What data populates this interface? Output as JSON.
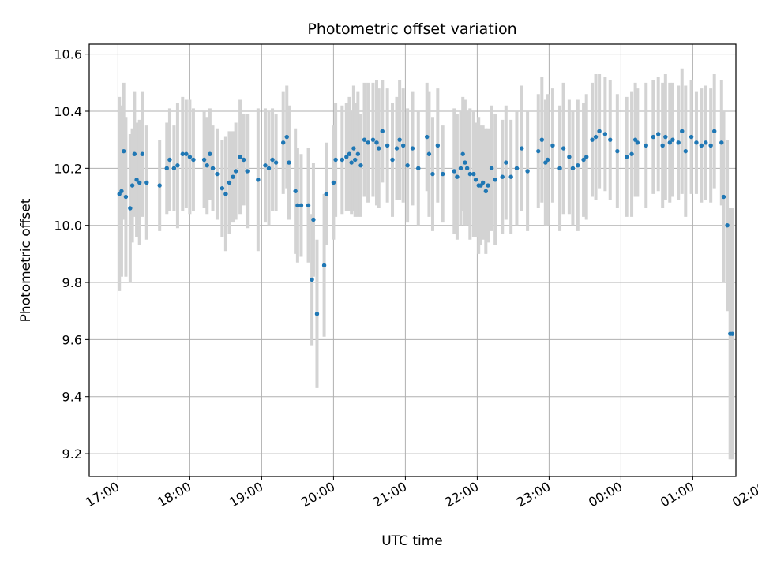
{
  "chart_data": {
    "type": "scatter",
    "title": "Photometric offset variation",
    "xlabel": "UTC time",
    "ylabel": "Photometric offset",
    "grid": true,
    "xlim": [
      16.6,
      25.6
    ],
    "ylim": [
      9.12,
      10.635
    ],
    "x_ticks": [
      {
        "value": 17,
        "label": "17:00"
      },
      {
        "value": 18,
        "label": "18:00"
      },
      {
        "value": 19,
        "label": "19:00"
      },
      {
        "value": 20,
        "label": "20:00"
      },
      {
        "value": 21,
        "label": "21:00"
      },
      {
        "value": 22,
        "label": "22:00"
      },
      {
        "value": 23,
        "label": "23:00"
      },
      {
        "value": 24,
        "label": "00:00"
      },
      {
        "value": 25,
        "label": "01:00"
      },
      {
        "value": 26,
        "label": "02:00"
      }
    ],
    "y_ticks": [
      {
        "value": 9.2,
        "label": "9.2"
      },
      {
        "value": 9.4,
        "label": "9.4"
      },
      {
        "value": 9.6,
        "label": "9.6"
      },
      {
        "value": 9.8,
        "label": "9.8"
      },
      {
        "value": 10.0,
        "label": "10.0"
      },
      {
        "value": 10.2,
        "label": "10.2"
      },
      {
        "value": 10.4,
        "label": "10.4"
      },
      {
        "value": 10.6,
        "label": "10.6"
      }
    ],
    "colors": {
      "marker": "#1f77b4",
      "errorbar": "#d3d3d3",
      "grid": "#b0b0b0"
    },
    "series": [
      {
        "x": [
          17.02,
          17.05,
          17.08,
          17.11,
          17.17,
          17.2,
          17.23,
          17.26,
          17.3,
          17.34,
          17.4,
          17.58,
          17.68,
          17.72,
          17.78,
          17.83,
          17.9,
          17.95,
          18.0,
          18.05,
          18.2,
          18.24,
          18.28,
          18.32,
          18.38,
          18.45,
          18.5,
          18.55,
          18.6,
          18.64,
          18.7,
          18.75,
          18.8,
          18.95,
          19.05,
          19.1,
          19.15,
          19.2,
          19.3,
          19.35,
          19.38,
          19.47,
          19.5,
          19.55,
          19.65,
          19.7,
          19.72,
          19.77,
          19.87,
          19.9,
          20.0,
          20.03,
          20.12,
          20.18,
          20.22,
          20.25,
          20.28,
          20.3,
          20.34,
          20.38,
          20.43,
          20.48,
          20.55,
          20.6,
          20.63,
          20.68,
          20.75,
          20.82,
          20.88,
          20.92,
          20.97,
          21.03,
          21.1,
          21.18,
          21.3,
          21.33,
          21.38,
          21.45,
          21.52,
          21.68,
          21.72,
          21.77,
          21.8,
          21.83,
          21.86,
          21.9,
          21.95,
          21.98,
          22.02,
          22.05,
          22.08,
          22.12,
          22.15,
          22.2,
          22.25,
          22.35,
          22.4,
          22.47,
          22.55,
          22.62,
          22.7,
          22.85,
          22.9,
          22.95,
          22.98,
          23.05,
          23.15,
          23.2,
          23.28,
          23.33,
          23.4,
          23.48,
          23.52,
          23.6,
          23.65,
          23.7,
          23.78,
          23.85,
          23.95,
          24.08,
          24.15,
          24.2,
          24.23,
          24.35,
          24.45,
          24.52,
          24.58,
          24.62,
          24.68,
          24.72,
          24.8,
          24.85,
          24.9,
          24.98,
          25.05,
          25.12,
          25.18,
          25.25,
          25.3,
          25.4,
          25.43,
          25.48,
          25.52,
          25.55
        ],
        "y": [
          10.11,
          10.12,
          10.26,
          10.1,
          10.06,
          10.14,
          10.25,
          10.16,
          10.15,
          10.25,
          10.15,
          10.14,
          10.2,
          10.23,
          10.2,
          10.21,
          10.25,
          10.25,
          10.24,
          10.23,
          10.23,
          10.21,
          10.25,
          10.2,
          10.18,
          10.13,
          10.11,
          10.15,
          10.17,
          10.19,
          10.24,
          10.23,
          10.19,
          10.16,
          10.21,
          10.2,
          10.23,
          10.22,
          10.29,
          10.31,
          10.22,
          10.12,
          10.07,
          10.07,
          10.07,
          9.81,
          10.02,
          9.69,
          9.86,
          10.11,
          10.15,
          10.23,
          10.23,
          10.24,
          10.25,
          10.22,
          10.27,
          10.23,
          10.25,
          10.21,
          10.3,
          10.29,
          10.3,
          10.29,
          10.27,
          10.33,
          10.28,
          10.23,
          10.27,
          10.3,
          10.28,
          10.21,
          10.27,
          10.2,
          10.31,
          10.25,
          10.18,
          10.28,
          10.18,
          10.19,
          10.17,
          10.2,
          10.25,
          10.22,
          10.2,
          10.18,
          10.18,
          10.16,
          10.14,
          10.14,
          10.15,
          10.12,
          10.14,
          10.2,
          10.16,
          10.17,
          10.22,
          10.17,
          10.2,
          10.27,
          10.19,
          10.26,
          10.3,
          10.22,
          10.23,
          10.28,
          10.2,
          10.27,
          10.24,
          10.2,
          10.21,
          10.23,
          10.24,
          10.3,
          10.31,
          10.33,
          10.32,
          10.3,
          10.26,
          10.24,
          10.25,
          10.3,
          10.29,
          10.28,
          10.31,
          10.32,
          10.28,
          10.31,
          10.29,
          10.3,
          10.29,
          10.33,
          10.26,
          10.31,
          10.29,
          10.28,
          10.29,
          10.28,
          10.33,
          10.29,
          10.1,
          10.0,
          9.62,
          9.62
        ],
        "err": [
          0.34,
          0.3,
          0.24,
          0.28,
          0.26,
          0.2,
          0.22,
          0.2,
          0.22,
          0.22,
          0.2,
          0.16,
          0.16,
          0.18,
          0.15,
          0.22,
          0.2,
          0.19,
          0.2,
          0.18,
          0.17,
          0.17,
          0.16,
          0.15,
          0.16,
          0.17,
          0.2,
          0.18,
          0.16,
          0.17,
          0.2,
          0.16,
          0.2,
          0.25,
          0.2,
          0.2,
          0.18,
          0.17,
          0.18,
          0.18,
          0.2,
          0.22,
          0.2,
          0.18,
          0.2,
          0.23,
          0.2,
          0.26,
          0.25,
          0.18,
          0.2,
          0.2,
          0.19,
          0.19,
          0.2,
          0.18,
          0.22,
          0.2,
          0.22,
          0.18,
          0.2,
          0.21,
          0.2,
          0.22,
          0.21,
          0.18,
          0.2,
          0.2,
          0.18,
          0.21,
          0.2,
          0.2,
          0.2,
          0.2,
          0.19,
          0.22,
          0.2,
          0.2,
          0.17,
          0.22,
          0.22,
          0.2,
          0.2,
          0.22,
          0.2,
          0.23,
          0.22,
          0.2,
          0.24,
          0.21,
          0.2,
          0.22,
          0.2,
          0.22,
          0.23,
          0.2,
          0.2,
          0.2,
          0.2,
          0.22,
          0.21,
          0.2,
          0.22,
          0.22,
          0.23,
          0.2,
          0.22,
          0.23,
          0.2,
          0.2,
          0.23,
          0.2,
          0.22,
          0.2,
          0.22,
          0.2,
          0.2,
          0.21,
          0.2,
          0.21,
          0.22,
          0.2,
          0.19,
          0.22,
          0.2,
          0.2,
          0.22,
          0.22,
          0.21,
          0.2,
          0.2,
          0.22,
          0.23,
          0.2,
          0.18,
          0.2,
          0.2,
          0.2,
          0.2,
          0.22,
          0.3,
          0.3,
          0.44,
          0.44
        ]
      }
    ]
  }
}
